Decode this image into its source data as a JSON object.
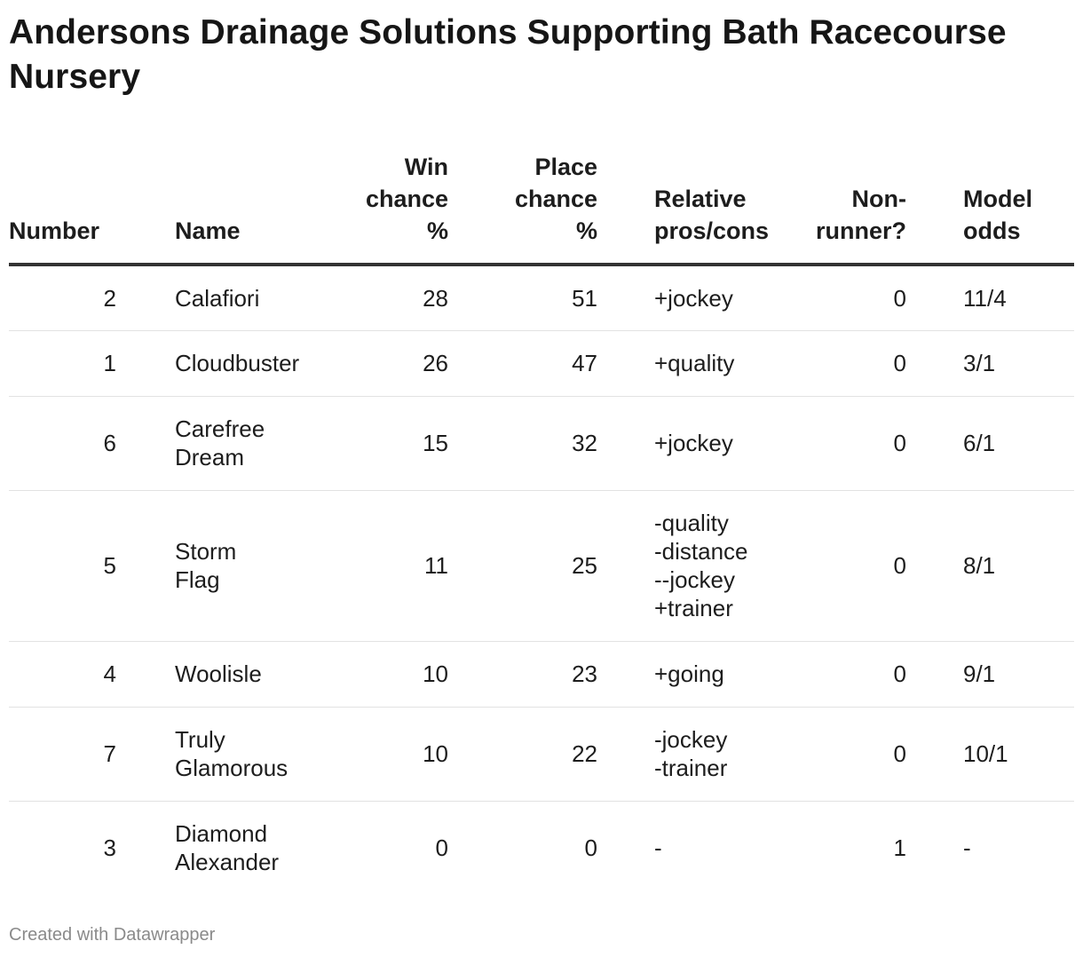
{
  "title": "Andersons Drainage Solutions Supporting Bath Racecourse Nursery",
  "footer": "Created with Datawrapper",
  "chart_data": {
    "type": "table",
    "columns": [
      {
        "key": "number",
        "label_lines": [
          "Number"
        ]
      },
      {
        "key": "name",
        "label_lines": [
          "Name"
        ]
      },
      {
        "key": "win",
        "label_lines": [
          "Win",
          "chance",
          "%"
        ]
      },
      {
        "key": "place",
        "label_lines": [
          "Place",
          "chance",
          "%"
        ]
      },
      {
        "key": "pros",
        "label_lines": [
          "Relative",
          "pros/cons"
        ]
      },
      {
        "key": "nonrunner",
        "label_lines": [
          "Non-",
          "runner?"
        ]
      },
      {
        "key": "odds",
        "label_lines": [
          "Model",
          "odds"
        ]
      }
    ],
    "rows": [
      {
        "number": "2",
        "name": "Calafiori",
        "win": 28,
        "place": 51,
        "pros": [
          "+jockey"
        ],
        "nonrunner": 0,
        "odds": "11/4"
      },
      {
        "number": "1",
        "name": "Cloudbuster",
        "win": 26,
        "place": 47,
        "pros": [
          "+quality"
        ],
        "nonrunner": 0,
        "odds": "3/1"
      },
      {
        "number": "6",
        "name": "Carefree Dream",
        "win": 15,
        "place": 32,
        "pros": [
          "+jockey"
        ],
        "nonrunner": 0,
        "odds": "6/1"
      },
      {
        "number": "5",
        "name": "Storm Flag",
        "win": 11,
        "place": 25,
        "pros": [
          "-quality",
          "-distance",
          "--jockey",
          "+trainer"
        ],
        "nonrunner": 0,
        "odds": "8/1"
      },
      {
        "number": "4",
        "name": "Woolisle",
        "win": 10,
        "place": 23,
        "pros": [
          "+going"
        ],
        "nonrunner": 0,
        "odds": "9/1"
      },
      {
        "number": "7",
        "name": "Truly Glamorous",
        "win": 10,
        "place": 22,
        "pros": [
          "-jockey",
          "-trainer"
        ],
        "nonrunner": 0,
        "odds": "10/1"
      },
      {
        "number": "3",
        "name": "Diamond Alexander",
        "win": 0,
        "place": 0,
        "pros": [
          "-"
        ],
        "nonrunner": 1,
        "odds": "-"
      }
    ]
  }
}
